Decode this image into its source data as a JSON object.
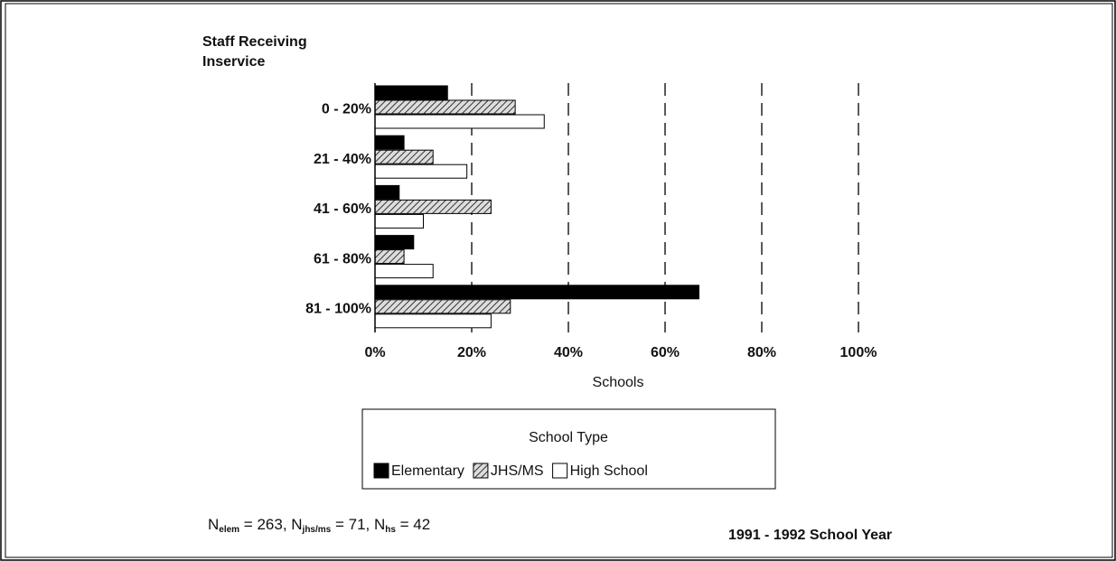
{
  "chart_data": {
    "type": "hbar",
    "ylabel": [
      "Staff Receiving",
      "Inservice"
    ],
    "xlabel": "Schools",
    "categories": [
      "0 - 20%",
      "21 - 40%",
      "41 - 60%",
      "61 - 80%",
      "81 - 100%"
    ],
    "series": [
      {
        "name": "Elementary",
        "color": "#000000",
        "values": [
          15,
          6,
          5,
          8,
          67
        ]
      },
      {
        "name": "JHS/MS",
        "color": "#555555",
        "pattern": "hatch",
        "values": [
          29,
          12,
          24,
          6,
          28
        ]
      },
      {
        "name": "High School",
        "color": "#ffffff",
        "values": [
          35,
          19,
          10,
          12,
          24
        ]
      }
    ],
    "xlim": [
      0,
      100
    ],
    "xticks": [
      {
        "value": 0,
        "label": "0%"
      },
      {
        "value": 20,
        "label": "20%"
      },
      {
        "value": 40,
        "label": "40%"
      },
      {
        "value": 60,
        "label": "60%"
      },
      {
        "value": 80,
        "label": "80%"
      },
      {
        "value": 100,
        "label": "100%"
      }
    ],
    "grid": true,
    "legend": {
      "title": "School Type",
      "position": "bottom"
    },
    "note": [
      {
        "symbol": "N",
        "sub": "elem",
        "rest": " = 263, "
      },
      {
        "symbol": "N",
        "sub": "jhs/ms",
        "rest": " = 71, "
      },
      {
        "symbol": "N",
        "sub": "hs",
        "rest": " = 42"
      }
    ],
    "footer": "1991 - 1992 School Year"
  }
}
